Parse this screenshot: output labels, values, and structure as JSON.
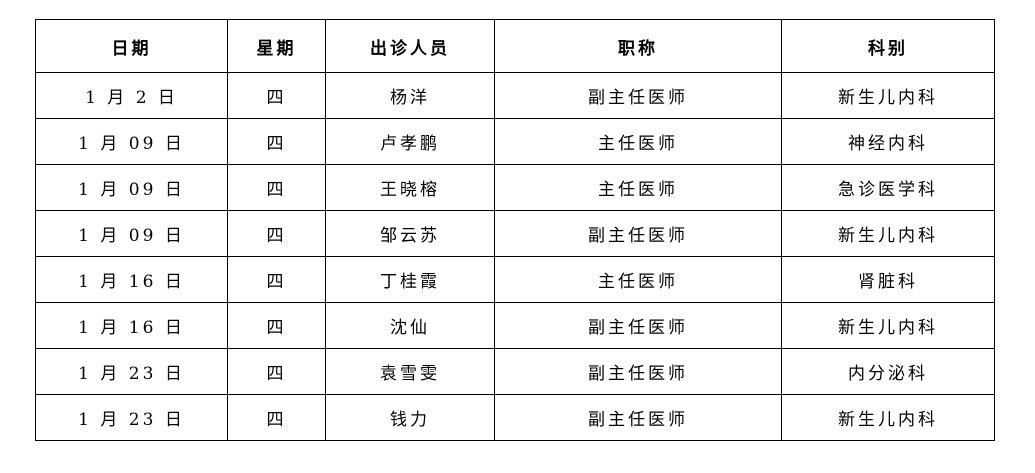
{
  "headers": [
    "日期",
    "星期",
    "出诊人员",
    "职称",
    "科别"
  ],
  "rows": [
    [
      "1 月 2 日",
      "四",
      "杨洋",
      "副主任医师",
      "新生儿内科"
    ],
    [
      "1 月 09 日",
      "四",
      "卢孝鹏",
      "主任医师",
      "神经内科"
    ],
    [
      "1 月 09 日",
      "四",
      "王晓榕",
      "主任医师",
      "急诊医学科"
    ],
    [
      "1 月 09 日",
      "四",
      "邹云苏",
      "副主任医师",
      "新生儿内科"
    ],
    [
      "1 月 16 日",
      "四",
      "丁桂霞",
      "主任医师",
      "肾脏科"
    ],
    [
      "1 月 16 日",
      "四",
      "沈仙",
      "副主任医师",
      "新生儿内科"
    ],
    [
      "1 月 23 日",
      "四",
      "袁雪雯",
      "副主任医师",
      "内分泌科"
    ],
    [
      "1 月 23 日",
      "四",
      "钱力",
      "副主任医师",
      "新生儿内科"
    ]
  ]
}
